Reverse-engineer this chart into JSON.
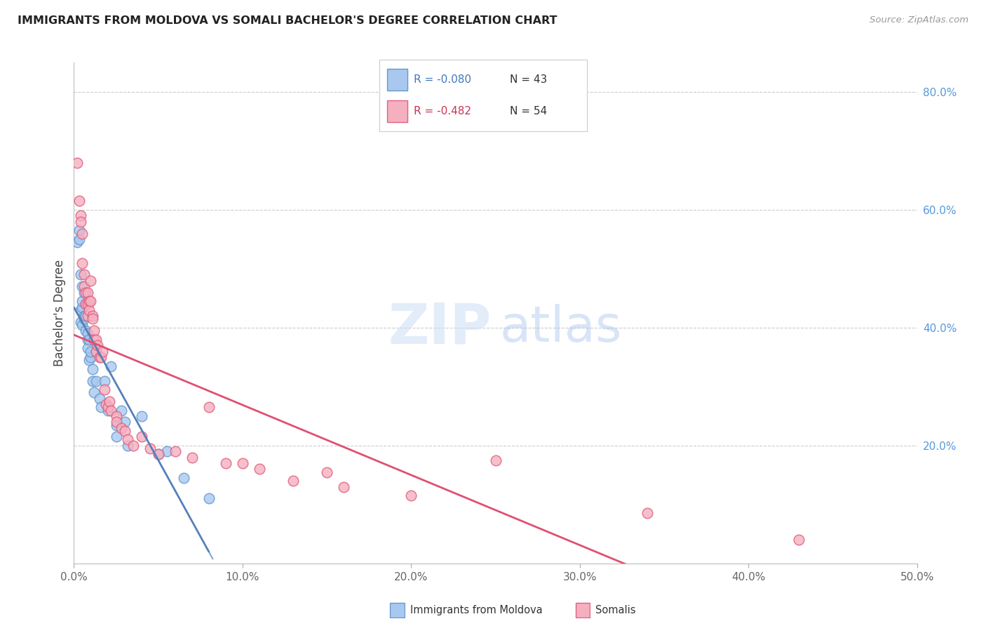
{
  "title": "IMMIGRANTS FROM MOLDOVA VS SOMALI BACHELOR'S DEGREE CORRELATION CHART",
  "source": "Source: ZipAtlas.com",
  "ylabel": "Bachelor's Degree",
  "xlim": [
    0.0,
    50.0
  ],
  "ylim": [
    0.0,
    85.0
  ],
  "xtick_vals": [
    0.0,
    10.0,
    20.0,
    30.0,
    40.0,
    50.0
  ],
  "xtick_labels": [
    "0.0%",
    "10.0%",
    "20.0%",
    "30.0%",
    "40.0%",
    "50.0%"
  ],
  "ytick_vals_right": [
    20.0,
    40.0,
    60.0,
    80.0
  ],
  "ytick_labels_right": [
    "20.0%",
    "40.0%",
    "60.0%",
    "80.0%"
  ],
  "legend_r_moldova": "-0.080",
  "legend_n_moldova": "43",
  "legend_r_somali": "-0.482",
  "legend_n_somali": "54",
  "color_moldova_fill": "#a8c8f0",
  "color_moldova_edge": "#6699cc",
  "color_somali_fill": "#f5b0c0",
  "color_somali_edge": "#e06080",
  "color_line_moldova": "#5580bb",
  "color_line_somali": "#e05070",
  "moldova_x": [
    0.2,
    0.3,
    0.3,
    0.4,
    0.4,
    0.4,
    0.5,
    0.5,
    0.5,
    0.5,
    0.6,
    0.6,
    0.6,
    0.7,
    0.7,
    0.7,
    0.8,
    0.8,
    0.8,
    0.9,
    0.9,
    1.0,
    1.0,
    1.1,
    1.1,
    1.2,
    1.3,
    1.3,
    1.5,
    1.6,
    1.8,
    2.0,
    2.2,
    2.5,
    2.5,
    2.8,
    3.0,
    3.2,
    4.0,
    5.0,
    5.5,
    6.5,
    8.0
  ],
  "moldova_y": [
    54.5,
    56.5,
    55.0,
    43.0,
    41.0,
    49.0,
    43.5,
    44.5,
    47.0,
    40.5,
    42.0,
    41.5,
    46.0,
    39.5,
    42.0,
    44.0,
    38.0,
    36.5,
    39.0,
    34.5,
    38.0,
    35.0,
    36.0,
    33.0,
    31.0,
    29.0,
    31.0,
    36.0,
    28.0,
    26.5,
    31.0,
    26.0,
    33.5,
    23.5,
    21.5,
    26.0,
    24.0,
    20.0,
    25.0,
    18.5,
    19.0,
    14.5,
    11.0
  ],
  "somali_x": [
    0.2,
    0.3,
    0.4,
    0.4,
    0.5,
    0.5,
    0.6,
    0.6,
    0.7,
    0.7,
    0.8,
    0.8,
    0.8,
    0.9,
    0.9,
    1.0,
    1.0,
    1.1,
    1.1,
    1.2,
    1.2,
    1.3,
    1.3,
    1.4,
    1.5,
    1.6,
    1.7,
    1.8,
    1.9,
    2.0,
    2.1,
    2.2,
    2.5,
    2.5,
    2.8,
    3.0,
    3.2,
    3.5,
    4.0,
    4.5,
    5.0,
    6.0,
    7.0,
    8.0,
    9.0,
    10.0,
    11.0,
    13.0,
    15.0,
    16.0,
    20.0,
    25.0,
    34.0,
    43.0
  ],
  "somali_y": [
    68.0,
    61.5,
    59.0,
    58.0,
    51.0,
    56.0,
    49.0,
    47.0,
    44.0,
    46.0,
    46.0,
    42.0,
    44.0,
    44.5,
    43.0,
    44.5,
    48.0,
    42.0,
    41.5,
    39.5,
    38.0,
    36.0,
    38.0,
    37.0,
    35.0,
    35.0,
    36.0,
    29.5,
    27.0,
    26.5,
    27.5,
    26.0,
    25.0,
    24.0,
    23.0,
    22.5,
    21.0,
    20.0,
    21.5,
    19.5,
    18.5,
    19.0,
    18.0,
    26.5,
    17.0,
    17.0,
    16.0,
    14.0,
    15.5,
    13.0,
    11.5,
    17.5,
    8.5,
    4.0
  ]
}
